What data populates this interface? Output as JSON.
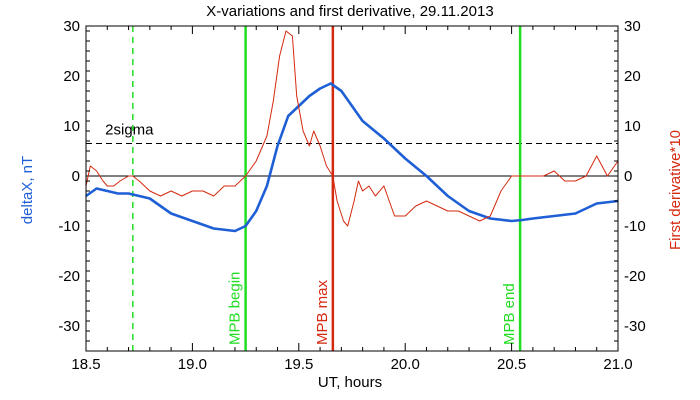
{
  "chart_data": {
    "type": "line",
    "title": "X-variations and first derivative, 29.11.2013",
    "xlabel": "UT, hours",
    "ylabel_left": "deltaX, nT",
    "ylabel_right": "First derivative*10",
    "xlim": [
      18.5,
      21.0
    ],
    "ylim_left": [
      -35,
      30
    ],
    "ylim_right": [
      -35,
      30
    ],
    "x_ticks": [
      18.5,
      19.0,
      19.5,
      20.0,
      20.5,
      21.0
    ],
    "x_tick_labels": [
      "18.5",
      "19.0",
      "19.5",
      "20.0",
      "20.5",
      "21.0"
    ],
    "y_ticks": [
      -30,
      -20,
      -10,
      0,
      10,
      20,
      30
    ],
    "y_tick_labels": [
      "-30",
      "-20",
      "-10",
      "0",
      "10",
      "20",
      "30"
    ],
    "grid": false,
    "colors": {
      "deltaX": "#1f5fd6",
      "derivative": "#d42a10",
      "mpb_begin_end": "#22dd22",
      "mpb_max": "#d42a10",
      "dashed_marker": "#22dd22",
      "axis": "#000000"
    },
    "series": [
      {
        "axis": "left",
        "x": [
          18.5,
          18.55,
          18.6,
          18.65,
          18.7,
          18.8,
          18.9,
          19.0,
          19.1,
          19.2,
          19.25,
          19.3,
          19.35,
          19.4,
          19.45,
          19.5,
          19.55,
          19.6,
          19.65,
          19.7,
          19.75,
          19.8,
          19.9,
          20.0,
          20.1,
          20.2,
          20.3,
          20.4,
          20.5,
          20.55,
          20.6,
          20.7,
          20.8,
          20.9,
          21.0
        ],
        "values": [
          -4,
          -2.5,
          -3,
          -3.5,
          -3.5,
          -4.5,
          -7.5,
          -9,
          -10.5,
          -11,
          -10,
          -7,
          -2,
          6,
          12,
          14,
          16,
          17.5,
          18.5,
          17,
          14,
          11,
          7.5,
          3.5,
          0,
          -4,
          -7,
          -8.5,
          -9,
          -8.8,
          -8.5,
          -8,
          -7.5,
          -5.5,
          -5
        ]
      },
      {
        "axis": "right",
        "x": [
          18.5,
          18.52,
          18.55,
          18.58,
          18.6,
          18.63,
          18.66,
          18.7,
          18.72,
          18.75,
          18.8,
          18.85,
          18.9,
          18.95,
          19.0,
          19.05,
          19.1,
          19.15,
          19.2,
          19.25,
          19.3,
          19.35,
          19.38,
          19.41,
          19.44,
          19.47,
          19.49,
          19.52,
          19.55,
          19.57,
          19.6,
          19.63,
          19.66,
          19.68,
          19.71,
          19.73,
          19.76,
          19.78,
          19.8,
          19.83,
          19.86,
          19.9,
          19.95,
          20.0,
          20.05,
          20.1,
          20.15,
          20.2,
          20.25,
          20.3,
          20.35,
          20.4,
          20.45,
          20.5,
          20.55,
          20.6,
          20.65,
          20.7,
          20.75,
          20.8,
          20.85,
          20.9,
          20.95,
          21.0
        ],
        "values": [
          -2,
          2,
          1,
          -1,
          -2,
          -2,
          -1,
          0,
          0,
          -1,
          -3,
          -4,
          -3,
          -4,
          -3,
          -3,
          -4,
          -2,
          -2,
          0,
          3,
          8,
          15,
          24,
          29,
          28,
          16,
          9,
          6,
          9,
          6,
          2,
          0,
          -5,
          -9,
          -10,
          -5,
          -1,
          -3,
          -2,
          -4,
          -2,
          -8,
          -8,
          -6,
          -5,
          -6,
          -7,
          -7,
          -8,
          -9,
          -8,
          -3,
          0,
          0,
          0,
          0,
          1,
          -1,
          -1,
          0,
          4,
          0,
          3
        ]
      }
    ],
    "vertical_markers": [
      {
        "x": 18.72,
        "style": "dashed",
        "label": ""
      },
      {
        "x": 19.25,
        "style": "solid",
        "label": "MPB begin"
      },
      {
        "x": 19.66,
        "style": "solid",
        "label": "MPB max"
      },
      {
        "x": 20.54,
        "style": "solid",
        "label": "MPB end"
      }
    ],
    "horizontal_markers": [
      {
        "y": 6.5,
        "style": "dashed",
        "label": "2sigma"
      },
      {
        "y": 0,
        "style": "solid",
        "label": ""
      }
    ]
  }
}
